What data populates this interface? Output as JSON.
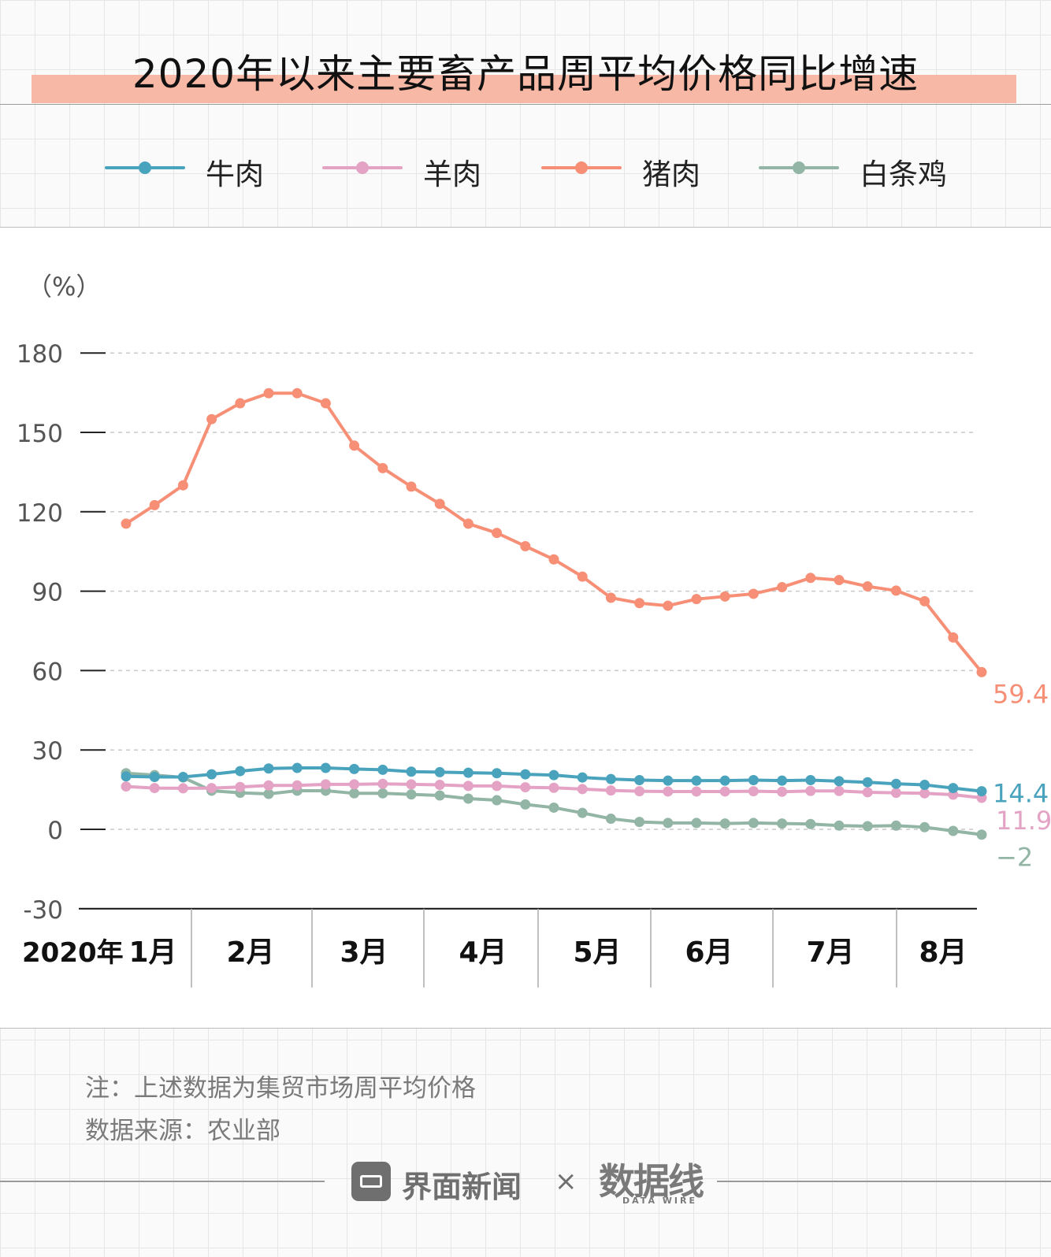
{
  "title": "2020年以来主要畜产品周平均价格同比增速",
  "chart_data": {
    "type": "line",
    "unit_label": "（%）",
    "yticks": [
      180,
      150,
      120,
      90,
      60,
      30,
      0,
      -30
    ],
    "ylim": [
      -30,
      180
    ],
    "year_label": "2020年",
    "month_labels": [
      "1月",
      "2月",
      "3月",
      "4月",
      "5月",
      "6月",
      "7月",
      "8月"
    ],
    "grid": "dashed horizontal",
    "legend_position": "top",
    "series": [
      {
        "name": "牛肉",
        "color": "#4aa3bd",
        "end_label": "14.4",
        "values": [
          20.0,
          19.8,
          19.8,
          20.8,
          22.0,
          23.0,
          23.2,
          23.2,
          22.8,
          22.5,
          21.8,
          21.6,
          21.4,
          21.2,
          20.8,
          20.5,
          19.6,
          19.0,
          18.6,
          18.4,
          18.4,
          18.4,
          18.6,
          18.4,
          18.6,
          18.2,
          17.8,
          17.2,
          16.8,
          15.6,
          14.4
        ]
      },
      {
        "name": "羊肉",
        "color": "#e4a3c4",
        "end_label": "11.9",
        "values": [
          16.2,
          15.6,
          15.5,
          15.6,
          16.0,
          16.6,
          16.6,
          17.0,
          17.0,
          17.2,
          17.0,
          16.8,
          16.4,
          16.4,
          15.9,
          15.7,
          15.2,
          14.7,
          14.4,
          14.3,
          14.3,
          14.3,
          14.4,
          14.2,
          14.5,
          14.5,
          14.0,
          13.8,
          13.6,
          13.1,
          11.9
        ]
      },
      {
        "name": "猪肉",
        "color": "#f68f75",
        "end_label": "59.4",
        "values": [
          115.5,
          122.5,
          130.0,
          155.0,
          161.0,
          164.8,
          164.8,
          161.0,
          145.0,
          136.5,
          129.5,
          123.0,
          115.5,
          112.0,
          107.0,
          102.0,
          95.5,
          87.5,
          85.5,
          84.5,
          87.0,
          88.0,
          89.0,
          91.5,
          95.0,
          94.2,
          91.8,
          90.2,
          86.2,
          72.5,
          59.4
        ]
      },
      {
        "name": "白条鸡",
        "color": "#92b5a5",
        "end_label": "−2",
        "values": [
          21.2,
          20.5,
          19.6,
          14.6,
          13.8,
          13.4,
          14.6,
          14.6,
          13.6,
          13.6,
          13.2,
          12.8,
          11.6,
          11.0,
          9.4,
          8.2,
          6.2,
          4.0,
          2.8,
          2.4,
          2.4,
          2.2,
          2.4,
          2.2,
          2.0,
          1.4,
          1.2,
          1.4,
          0.8,
          -0.6,
          -2.0
        ]
      }
    ]
  },
  "notes": {
    "line1": "注：上述数据为集贸市场周平均价格",
    "line2": "数据来源：农业部"
  },
  "footer": {
    "brand": "界面新闻",
    "times": "×",
    "logo": "数据线",
    "logo_sub": "DATA WIRE"
  }
}
